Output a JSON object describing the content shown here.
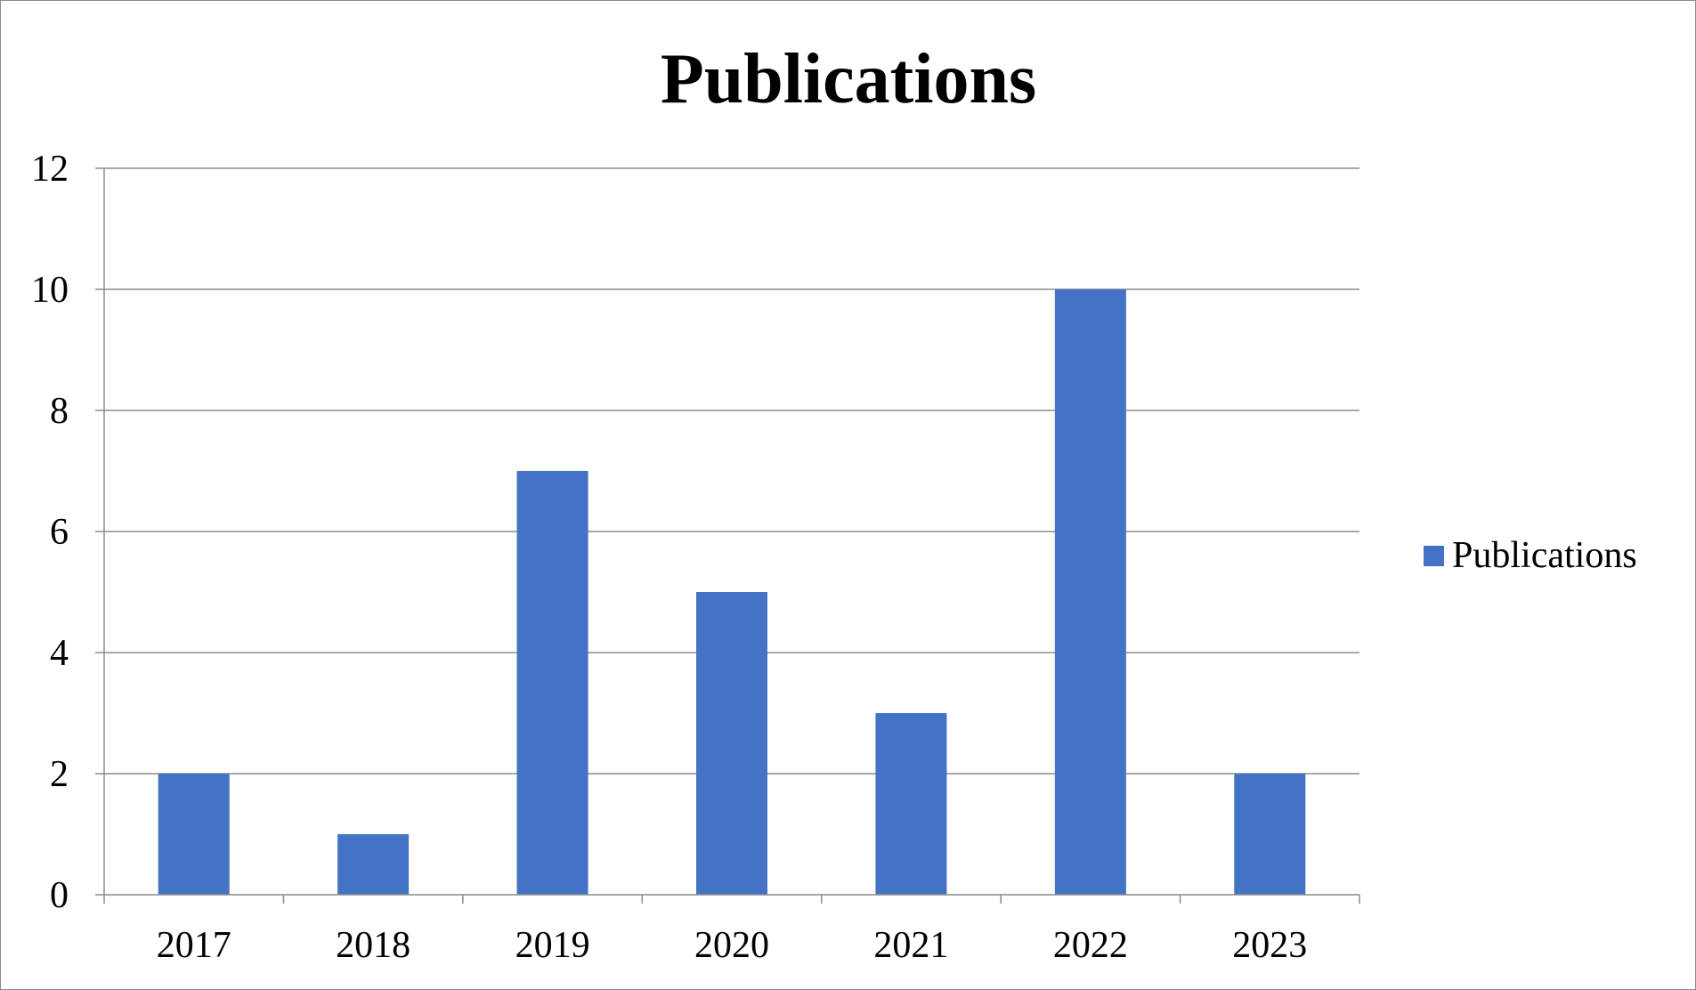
{
  "chart_data": {
    "type": "bar",
    "title": "Publications",
    "xlabel": "",
    "ylabel": "",
    "categories": [
      "2017",
      "2018",
      "2019",
      "2020",
      "2021",
      "2022",
      "2023"
    ],
    "series": [
      {
        "name": "Publications",
        "values": [
          2,
          1,
          7,
          5,
          3,
          10,
          2
        ],
        "color": "#4472C4"
      }
    ],
    "ylim": [
      0,
      12
    ],
    "yticks": [
      "0",
      "2",
      "4",
      "6",
      "8",
      "10",
      "12"
    ],
    "grid": true,
    "legend_position": "right"
  }
}
